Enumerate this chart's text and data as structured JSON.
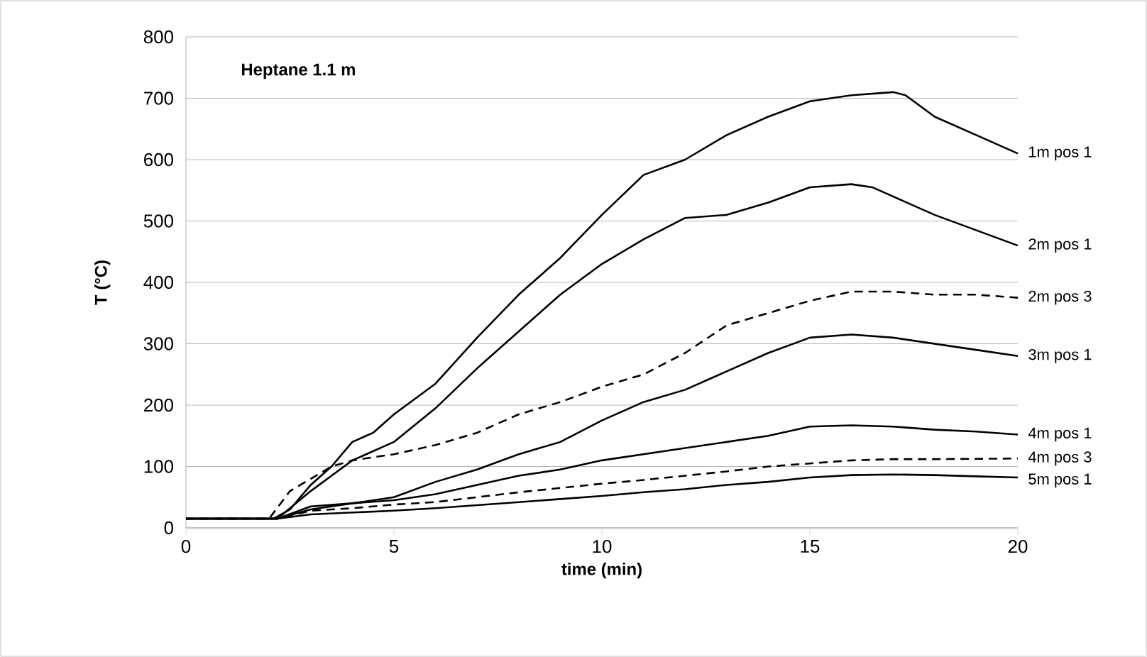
{
  "chart_data": {
    "type": "line",
    "title": "Heptane 1.1 m",
    "xlabel": "time (min)",
    "ylabel": "T (°C)",
    "xlim": [
      0,
      20
    ],
    "xticks": [
      0,
      5,
      10,
      15,
      20
    ],
    "ylim": [
      0,
      800
    ],
    "yticks": [
      0,
      100,
      200,
      300,
      400,
      500,
      600,
      700,
      800
    ],
    "grid": "y",
    "marker": "none",
    "series": [
      {
        "name": "1m pos 1",
        "color": "#000000",
        "line_style": "solid",
        "x": [
          0,
          2.1,
          2.5,
          3,
          3.5,
          4,
          4.5,
          5,
          6,
          7,
          8,
          9,
          10,
          11,
          12,
          13,
          14,
          15,
          16,
          17,
          17.3,
          18,
          19,
          20
        ],
        "values": [
          15,
          15,
          30,
          70,
          100,
          140,
          155,
          185,
          235,
          310,
          380,
          440,
          510,
          575,
          600,
          640,
          670,
          695,
          705,
          710,
          705,
          670,
          640,
          610
        ]
      },
      {
        "name": "2m pos 1",
        "color": "#000000",
        "line_style": "solid",
        "x": [
          0,
          2.2,
          3,
          3.5,
          4,
          5,
          6,
          7,
          8,
          9,
          10,
          11,
          12,
          13,
          14,
          15,
          16,
          16.5,
          17,
          18,
          19,
          20
        ],
        "values": [
          15,
          15,
          60,
          85,
          110,
          140,
          195,
          260,
          320,
          380,
          430,
          470,
          505,
          510,
          530,
          555,
          560,
          555,
          540,
          510,
          485,
          460
        ]
      },
      {
        "name": "2m pos 3",
        "color": "#000000",
        "line_style": "dashed",
        "x": [
          0,
          2.0,
          2.5,
          3,
          3.5,
          4,
          5,
          6,
          7,
          8,
          9,
          10,
          11,
          12,
          13,
          14,
          15,
          16,
          17,
          18,
          19,
          20
        ],
        "values": [
          15,
          15,
          60,
          80,
          100,
          110,
          120,
          135,
          155,
          185,
          205,
          230,
          250,
          285,
          330,
          350,
          370,
          385,
          385,
          380,
          380,
          375
        ]
      },
      {
        "name": "3m pos 1",
        "color": "#000000",
        "line_style": "solid",
        "x": [
          0,
          2.2,
          3,
          4,
          5,
          6,
          7,
          8,
          9,
          10,
          11,
          12,
          13,
          14,
          15,
          16,
          17,
          18,
          19,
          20
        ],
        "values": [
          15,
          15,
          35,
          40,
          50,
          75,
          95,
          120,
          140,
          175,
          205,
          225,
          255,
          285,
          310,
          315,
          310,
          300,
          290,
          280
        ]
      },
      {
        "name": "4m pos 1",
        "color": "#000000",
        "line_style": "solid",
        "x": [
          0,
          2.2,
          3,
          4,
          5,
          6,
          7,
          8,
          9,
          10,
          11,
          12,
          13,
          14,
          15,
          16,
          17,
          18,
          19,
          20
        ],
        "values": [
          15,
          15,
          30,
          40,
          45,
          55,
          70,
          85,
          95,
          110,
          120,
          130,
          140,
          150,
          165,
          167,
          165,
          160,
          157,
          152
        ]
      },
      {
        "name": "4m pos 3",
        "color": "#000000",
        "line_style": "dashed",
        "x": [
          0,
          2.2,
          3,
          4,
          5,
          6,
          7,
          8,
          9,
          10,
          11,
          12,
          13,
          14,
          15,
          16,
          17,
          18,
          20
        ],
        "values": [
          15,
          15,
          28,
          32,
          38,
          42,
          50,
          58,
          65,
          72,
          78,
          85,
          92,
          100,
          105,
          110,
          112,
          112,
          113
        ]
      },
      {
        "name": "5m pos 1",
        "color": "#000000",
        "line_style": "solid",
        "x": [
          0,
          2.2,
          3,
          4,
          5,
          6,
          7,
          8,
          9,
          10,
          11,
          12,
          13,
          14,
          15,
          16,
          17,
          18,
          19,
          20
        ],
        "values": [
          15,
          15,
          22,
          25,
          28,
          32,
          37,
          42,
          47,
          52,
          58,
          63,
          70,
          75,
          82,
          86,
          87,
          86,
          84,
          82
        ]
      }
    ]
  }
}
